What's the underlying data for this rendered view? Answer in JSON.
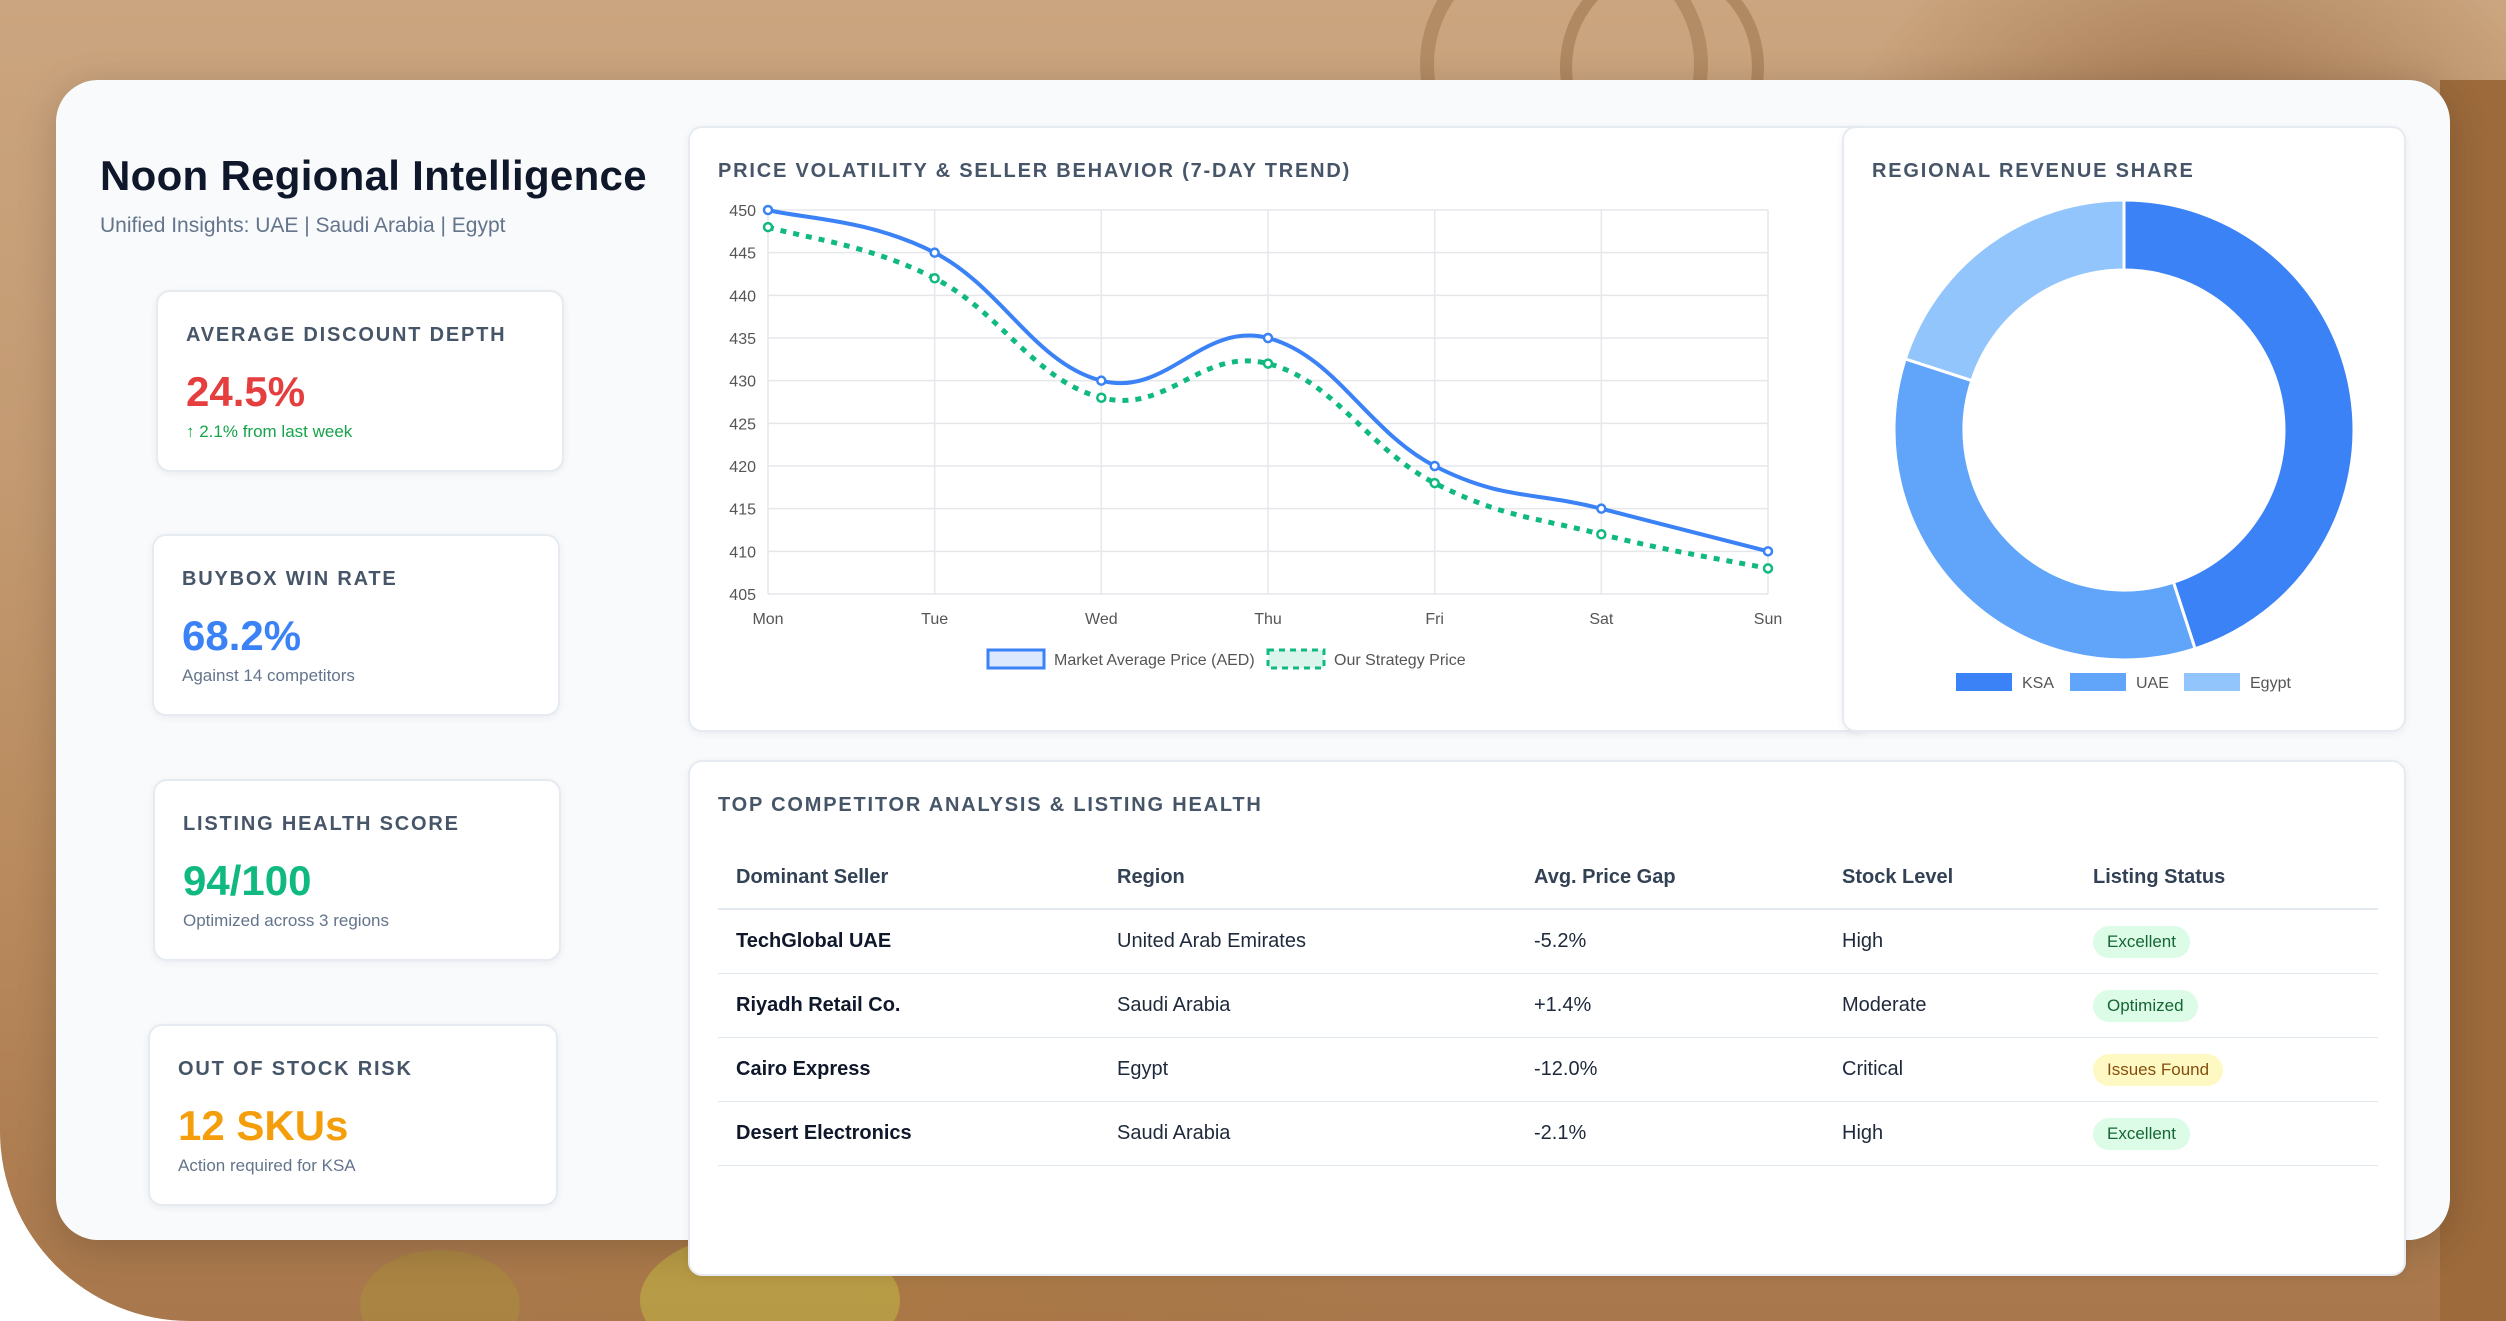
{
  "app": {
    "title": "Noon Regional Intelligence",
    "subtitle": "Unified Insights: UAE | Saudi Arabia | Egypt"
  },
  "kpis": [
    {
      "label": "AVERAGE DISCOUNT DEPTH",
      "value": "24.5%",
      "note": "↑ 2.1% from last week",
      "value_color": "#e53e3e",
      "note_color": "#16a34a"
    },
    {
      "label": "BUYBOX WIN RATE",
      "value": "68.2%",
      "note": "Against 14 competitors",
      "value_color": "#3b82f6",
      "note_color": "#64748b"
    },
    {
      "label": "LISTING HEALTH SCORE",
      "value": "94/100",
      "note": "Optimized across 3 regions",
      "value_color": "#10b981",
      "note_color": "#64748b"
    },
    {
      "label": "OUT OF STOCK RISK",
      "value": "12 SKUs",
      "note": "Action required for KSA",
      "value_color": "#f59e0b",
      "note_color": "#64748b"
    }
  ],
  "price_chart": {
    "title": "PRICE VOLATILITY & SELLER BEHAVIOR (7-DAY TREND)"
  },
  "share_chart": {
    "title": "REGIONAL REVENUE SHARE"
  },
  "chart_data": [
    {
      "type": "line",
      "title": "PRICE VOLATILITY & SELLER BEHAVIOR (7-DAY TREND)",
      "x": [
        "Mon",
        "Tue",
        "Wed",
        "Thu",
        "Fri",
        "Sat",
        "Sun"
      ],
      "series": [
        {
          "name": "Market Average Price (AED)",
          "values": [
            450,
            445,
            430,
            435,
            420,
            415,
            410
          ],
          "color": "#3b82f6",
          "style": "solid"
        },
        {
          "name": "Our Strategy Price",
          "values": [
            448,
            442,
            428,
            432,
            418,
            412,
            408
          ],
          "color": "#10b981",
          "style": "dashed"
        }
      ],
      "ylim": [
        405,
        450
      ],
      "yticks": [
        450,
        445,
        440,
        435,
        430,
        425,
        420,
        415,
        410,
        405
      ],
      "grid": true,
      "legend": "bottom"
    },
    {
      "type": "pie",
      "title": "REGIONAL REVENUE SHARE",
      "categories": [
        "KSA",
        "UAE",
        "Egypt"
      ],
      "values": [
        45,
        35,
        20
      ],
      "colors": [
        "#3b82f6",
        "#60a5fa",
        "#93c5fd"
      ],
      "legend": "bottom"
    }
  ],
  "competitors": {
    "title": "TOP COMPETITOR ANALYSIS & LISTING HEALTH",
    "columns": [
      "Dominant Seller",
      "Region",
      "Avg. Price Gap",
      "Stock Level",
      "Listing Status"
    ],
    "rows": [
      {
        "seller": "TechGlobal UAE",
        "region": "United Arab Emirates",
        "gap": "-5.2%",
        "stock": "High",
        "status": "Excellent",
        "status_kind": "good"
      },
      {
        "seller": "Riyadh Retail Co.",
        "region": "Saudi Arabia",
        "gap": "+1.4%",
        "stock": "Moderate",
        "status": "Optimized",
        "status_kind": "good"
      },
      {
        "seller": "Cairo Express",
        "region": "Egypt",
        "gap": "-12.0%",
        "stock": "Critical",
        "status": "Issues Found",
        "status_kind": "warn"
      },
      {
        "seller": "Desert Electronics",
        "region": "Saudi Arabia",
        "gap": "-2.1%",
        "stock": "High",
        "status": "Excellent",
        "status_kind": "good"
      }
    ]
  }
}
